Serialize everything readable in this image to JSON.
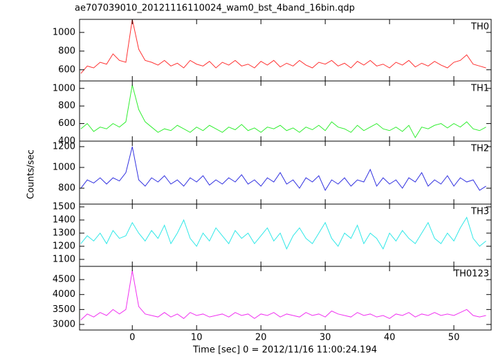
{
  "chart_data": [
    {
      "type": "line",
      "title": "ae707039010_20121116110024_wam0_bst_4band_16bin.qdp",
      "label": "TH0",
      "color": "#ff3030",
      "x": [
        -8,
        -7,
        -6,
        -5,
        -4,
        -3,
        -2,
        -1,
        0,
        1,
        2,
        3,
        4,
        5,
        6,
        7,
        8,
        9,
        10,
        11,
        12,
        13,
        14,
        15,
        16,
        17,
        18,
        19,
        20,
        21,
        22,
        23,
        24,
        25,
        26,
        27,
        28,
        29,
        30,
        31,
        32,
        33,
        34,
        35,
        36,
        37,
        38,
        39,
        40,
        41,
        42,
        43,
        44,
        45,
        46,
        47,
        48,
        49,
        50,
        51,
        52,
        53,
        54,
        55
      ],
      "values": [
        560,
        640,
        620,
        680,
        660,
        770,
        700,
        680,
        1140,
        820,
        700,
        680,
        650,
        700,
        640,
        670,
        620,
        700,
        660,
        640,
        690,
        620,
        680,
        650,
        700,
        640,
        660,
        620,
        690,
        650,
        700,
        630,
        670,
        640,
        700,
        650,
        620,
        680,
        660,
        700,
        640,
        670,
        620,
        690,
        650,
        700,
        640,
        660,
        620,
        680,
        650,
        700,
        630,
        670,
        640,
        690,
        650,
        620,
        680,
        700,
        760,
        660,
        640,
        620
      ],
      "xlim": [
        -8.2,
        55.8
      ],
      "xticks": [
        0,
        10,
        20,
        30,
        40,
        50
      ],
      "ylim": [
        480,
        1140
      ],
      "yticks": [
        600,
        800,
        1000
      ]
    },
    {
      "type": "line",
      "label": "TH1",
      "color": "#30ee30",
      "x": [
        -8,
        -7,
        -6,
        -5,
        -4,
        -3,
        -2,
        -1,
        0,
        1,
        2,
        3,
        4,
        5,
        6,
        7,
        8,
        9,
        10,
        11,
        12,
        13,
        14,
        15,
        16,
        17,
        18,
        19,
        20,
        21,
        22,
        23,
        24,
        25,
        26,
        27,
        28,
        29,
        30,
        31,
        32,
        33,
        34,
        35,
        36,
        37,
        38,
        39,
        40,
        41,
        42,
        43,
        44,
        45,
        46,
        47,
        48,
        49,
        50,
        51,
        52,
        53,
        54,
        55
      ],
      "values": [
        540,
        600,
        510,
        560,
        540,
        600,
        560,
        620,
        1040,
        760,
        620,
        560,
        500,
        540,
        520,
        580,
        540,
        500,
        560,
        520,
        580,
        540,
        500,
        560,
        530,
        590,
        520,
        550,
        500,
        560,
        540,
        580,
        520,
        550,
        500,
        560,
        530,
        580,
        520,
        620,
        560,
        540,
        500,
        580,
        520,
        560,
        600,
        540,
        520,
        560,
        510,
        580,
        440,
        560,
        540,
        580,
        600,
        550,
        600,
        560,
        620,
        540,
        520,
        560
      ],
      "xlim": [
        -8.2,
        55.8
      ],
      "xticks": [
        0,
        10,
        20,
        30,
        40,
        50
      ],
      "ylim": [
        400,
        1085
      ],
      "yticks": [
        400,
        600,
        800,
        1000
      ]
    },
    {
      "type": "line",
      "label": "TH2",
      "ylabel": "Counts/sec",
      "color": "#3030e0",
      "x": [
        -8,
        -7,
        -6,
        -5,
        -4,
        -3,
        -2,
        -1,
        0,
        1,
        2,
        3,
        4,
        5,
        6,
        7,
        8,
        9,
        10,
        11,
        12,
        13,
        14,
        15,
        16,
        17,
        18,
        19,
        20,
        21,
        22,
        23,
        24,
        25,
        26,
        27,
        28,
        29,
        30,
        31,
        32,
        33,
        34,
        35,
        36,
        37,
        38,
        39,
        40,
        41,
        42,
        43,
        44,
        45,
        46,
        47,
        48,
        49,
        50,
        51,
        52,
        53,
        54,
        55
      ],
      "values": [
        800,
        880,
        850,
        900,
        840,
        900,
        870,
        950,
        1200,
        880,
        820,
        900,
        860,
        920,
        840,
        880,
        820,
        900,
        860,
        920,
        830,
        880,
        840,
        900,
        860,
        930,
        840,
        880,
        820,
        900,
        860,
        950,
        840,
        880,
        800,
        900,
        860,
        920,
        780,
        880,
        840,
        900,
        820,
        880,
        860,
        980,
        820,
        900,
        840,
        880,
        800,
        900,
        860,
        950,
        820,
        880,
        840,
        920,
        820,
        900,
        860,
        880,
        780,
        820
      ],
      "xlim": [
        -8.2,
        55.8
      ],
      "xticks": [
        0,
        10,
        20,
        30,
        40,
        50
      ],
      "ylim": [
        647,
        1253
      ],
      "yticks": [
        800,
        1000,
        1200
      ]
    },
    {
      "type": "line",
      "label": "TH3",
      "color": "#30e8e8",
      "x": [
        -8,
        -7,
        -6,
        -5,
        -4,
        -3,
        -2,
        -1,
        0,
        1,
        2,
        3,
        4,
        5,
        6,
        7,
        8,
        9,
        10,
        11,
        12,
        13,
        14,
        15,
        16,
        17,
        18,
        19,
        20,
        21,
        22,
        23,
        24,
        25,
        26,
        27,
        28,
        29,
        30,
        31,
        32,
        33,
        34,
        35,
        36,
        37,
        38,
        39,
        40,
        41,
        42,
        43,
        44,
        45,
        46,
        47,
        48,
        49,
        50,
        51,
        52,
        53,
        54,
        55
      ],
      "values": [
        1220,
        1280,
        1240,
        1300,
        1220,
        1320,
        1260,
        1280,
        1380,
        1300,
        1240,
        1320,
        1260,
        1360,
        1220,
        1300,
        1400,
        1260,
        1200,
        1300,
        1240,
        1340,
        1280,
        1220,
        1320,
        1260,
        1300,
        1220,
        1280,
        1340,
        1240,
        1300,
        1180,
        1280,
        1340,
        1260,
        1220,
        1300,
        1380,
        1260,
        1200,
        1300,
        1260,
        1360,
        1220,
        1300,
        1260,
        1180,
        1300,
        1240,
        1320,
        1260,
        1220,
        1300,
        1380,
        1260,
        1220,
        1300,
        1240,
        1340,
        1420,
        1260,
        1200,
        1240
      ],
      "xlim": [
        -8.2,
        55.8
      ],
      "xticks": [
        0,
        10,
        20,
        30,
        40,
        50
      ],
      "ylim": [
        1047,
        1521
      ],
      "yticks": [
        1100,
        1200,
        1300,
        1400,
        1500
      ]
    },
    {
      "type": "line",
      "label": "TH0123",
      "xlabel": "Time [sec] 0 = 2012/11/16 11:00:24.194",
      "color": "#f030f0",
      "x": [
        -8,
        -7,
        -6,
        -5,
        -4,
        -3,
        -2,
        -1,
        0,
        1,
        2,
        3,
        4,
        5,
        6,
        7,
        8,
        9,
        10,
        11,
        12,
        13,
        14,
        15,
        16,
        17,
        18,
        19,
        20,
        21,
        22,
        23,
        24,
        25,
        26,
        27,
        28,
        29,
        30,
        31,
        32,
        33,
        34,
        35,
        36,
        37,
        38,
        39,
        40,
        41,
        42,
        43,
        44,
        45,
        46,
        47,
        48,
        49,
        50,
        51,
        52,
        53,
        54,
        55
      ],
      "values": [
        3150,
        3350,
        3250,
        3400,
        3300,
        3500,
        3350,
        3500,
        4800,
        3600,
        3350,
        3300,
        3250,
        3400,
        3250,
        3350,
        3200,
        3400,
        3300,
        3350,
        3250,
        3300,
        3350,
        3250,
        3400,
        3300,
        3350,
        3200,
        3350,
        3300,
        3400,
        3250,
        3350,
        3300,
        3250,
        3400,
        3300,
        3350,
        3250,
        3450,
        3350,
        3300,
        3250,
        3400,
        3300,
        3350,
        3250,
        3300,
        3200,
        3350,
        3300,
        3400,
        3250,
        3350,
        3300,
        3400,
        3300,
        3350,
        3300,
        3400,
        3500,
        3300,
        3250,
        3300
      ],
      "xlim": [
        -8.2,
        55.8
      ],
      "xticks": [
        0,
        10,
        20,
        30,
        40,
        50
      ],
      "ylim": [
        2814,
        4942
      ],
      "yticks": [
        3000,
        3500,
        4000,
        4500
      ]
    }
  ]
}
